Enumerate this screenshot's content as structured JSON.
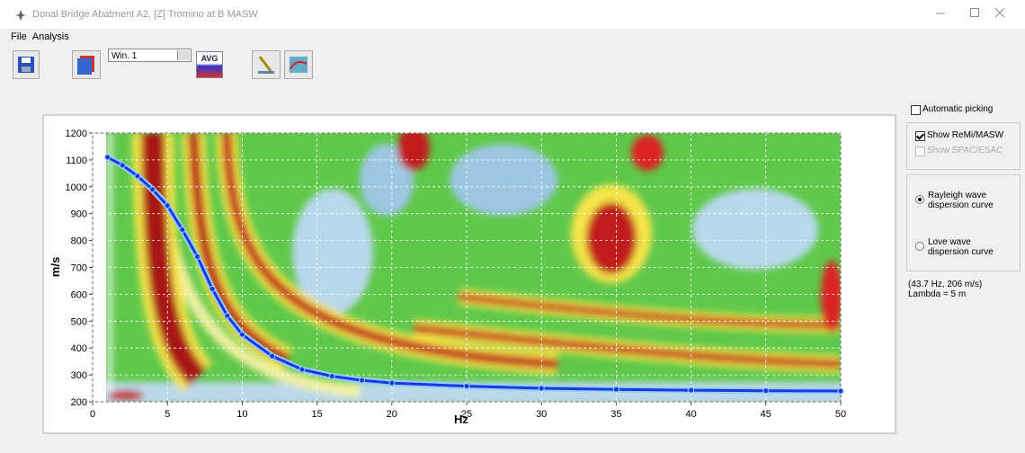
{
  "window": {
    "title": "Donal Bridge Abatment A2, [Z] Tromino at B MASW"
  },
  "menu": [
    "File",
    "Analysis"
  ],
  "toolbar": {
    "window_select": "Win. 1",
    "avg_button": "AVG"
  },
  "panel": {
    "automatic_picking": {
      "label": "Automatic picking",
      "checked": false,
      "enabled": true
    },
    "show_remi": {
      "label": "Show ReMi/MASW",
      "checked": true,
      "enabled": true
    },
    "show_spac": {
      "label": "Show SPAC/ESAC",
      "checked": false,
      "enabled": false
    },
    "rayleigh": {
      "label": "Rayleigh wave dispersion curve",
      "selected": true
    },
    "love": {
      "label": "Love wave dispersion curve",
      "selected": false
    },
    "cursor_readout": "(43.7 Hz, 206 m/s)",
    "lambda": "Lambda = 5 m"
  },
  "chart_data": {
    "type": "line",
    "x_label": "Hz",
    "y_label": "m/s",
    "xlim": [
      0,
      50
    ],
    "ylim": [
      200,
      1200
    ],
    "xticks": [
      0,
      5,
      10,
      15,
      20,
      25,
      30,
      35,
      40,
      45,
      50
    ],
    "yticks": [
      200,
      300,
      400,
      500,
      600,
      700,
      800,
      900,
      1000,
      1100,
      1200
    ],
    "grid": true,
    "x": [
      1,
      2,
      3,
      4,
      5,
      6,
      7,
      8,
      9,
      10,
      12,
      14,
      16,
      18,
      20,
      25,
      30,
      35,
      40,
      45,
      50
    ],
    "values": [
      1110,
      1080,
      1040,
      990,
      930,
      840,
      740,
      620,
      520,
      450,
      370,
      320,
      295,
      280,
      270,
      258,
      250,
      246,
      243,
      241,
      240
    ],
    "color": "#1f35e0"
  }
}
